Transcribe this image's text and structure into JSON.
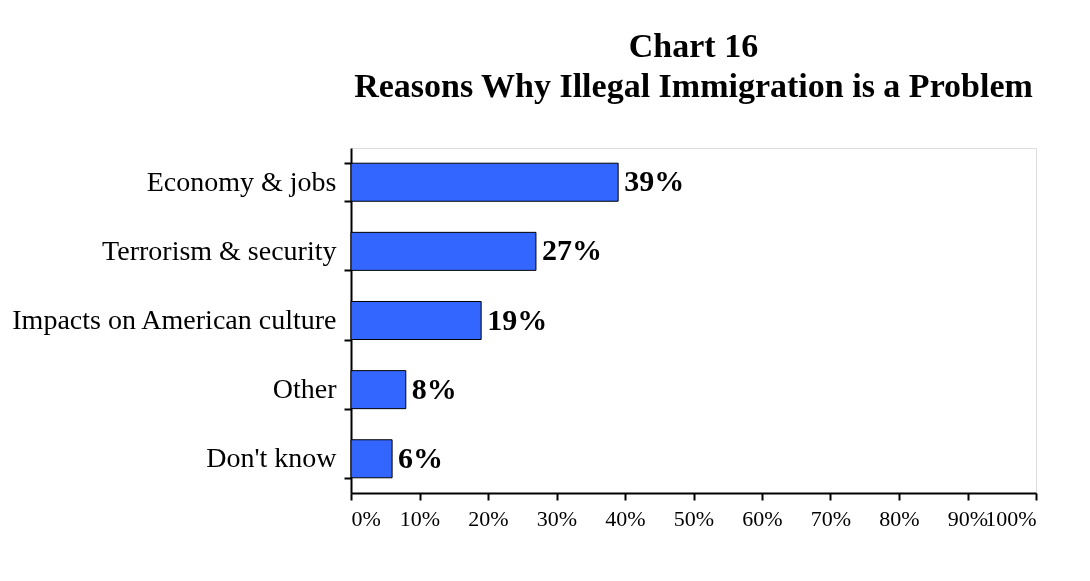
{
  "chart_data": {
    "type": "bar",
    "orientation": "horizontal",
    "title": "Chart 16",
    "subtitle": "Reasons Why Illegal Immigration is a Problem",
    "categories": [
      "Economy & jobs",
      "Terrorism & security",
      "Impacts on American culture",
      "Other",
      "Don't know"
    ],
    "values": [
      39,
      27,
      19,
      8,
      6
    ],
    "value_labels": [
      "39%",
      "27%",
      "19%",
      "8%",
      "6%"
    ],
    "color": "#3366ff",
    "xlim": [
      0,
      100
    ],
    "xticks": [
      {
        "value": 0,
        "label": "0%"
      },
      {
        "value": 10,
        "label": "10%"
      },
      {
        "value": 20,
        "label": "20%"
      },
      {
        "value": 30,
        "label": "30%"
      },
      {
        "value": 40,
        "label": "40%"
      },
      {
        "value": 50,
        "label": "50%"
      },
      {
        "value": 60,
        "label": "60%"
      },
      {
        "value": 70,
        "label": "70%"
      },
      {
        "value": 80,
        "label": "80%"
      },
      {
        "value": 90,
        "label": "90%"
      },
      {
        "value": 100,
        "label": "100%"
      }
    ],
    "grid": false
  }
}
